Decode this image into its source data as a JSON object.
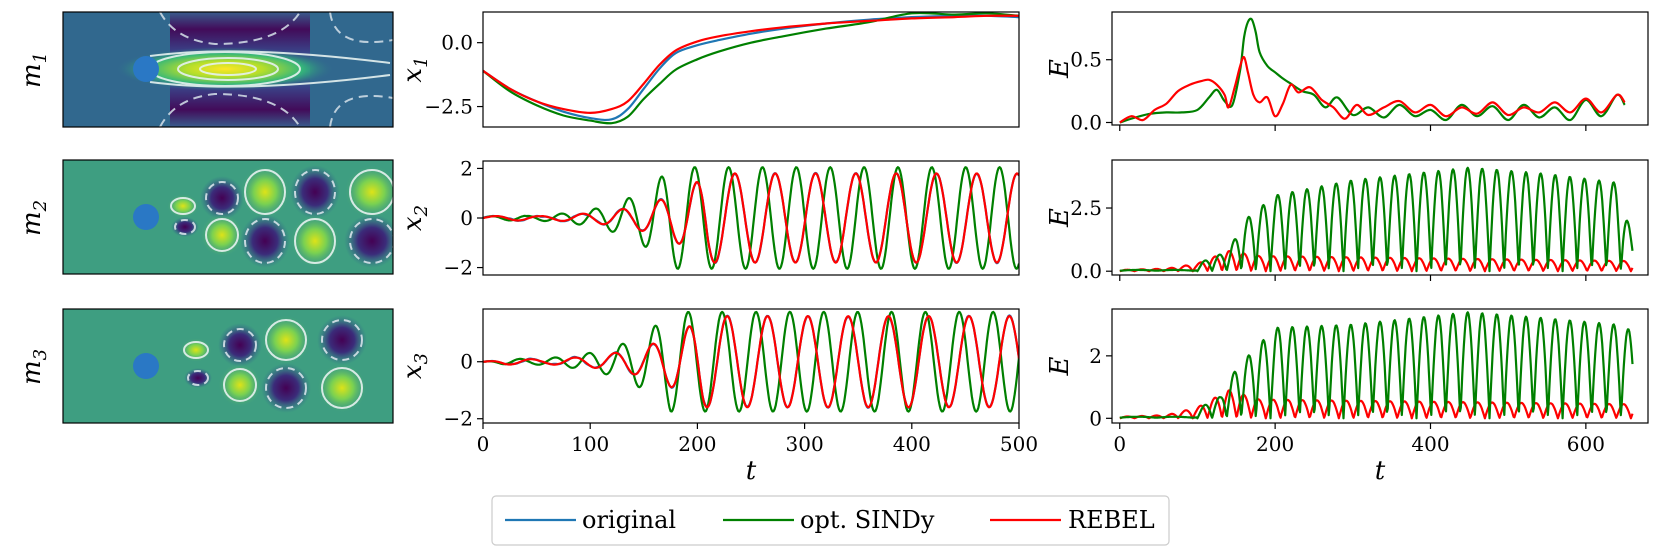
{
  "chart_data": [
    {
      "type": "heatmap",
      "panel": "m1",
      "ylabel": "m",
      "ylabel_sub": "1",
      "colormap": "viridis",
      "cylinder_color": "#2a78c5",
      "contours": "white solid/dashed"
    },
    {
      "type": "heatmap",
      "panel": "m2",
      "ylabel": "m",
      "ylabel_sub": "2",
      "colormap": "viridis",
      "cylinder_color": "#2a78c5",
      "contours": "white solid/dashed"
    },
    {
      "type": "heatmap",
      "panel": "m3",
      "ylabel": "m",
      "ylabel_sub": "3",
      "colormap": "viridis",
      "cylinder_color": "#2a78c5",
      "contours": "white solid/dashed"
    },
    {
      "type": "line",
      "panel": "x1",
      "ylabel": "x",
      "ylabel_sub": "1",
      "xlim": [
        0,
        500
      ],
      "ylim": [
        -3.3,
        1.2
      ],
      "yticks": [
        "0.0",
        "−2.5"
      ],
      "ytick_values": [
        0,
        -2.5
      ],
      "series": [
        {
          "name": "original",
          "color": "#1f77b4",
          "x": [
            0,
            25,
            50,
            75,
            100,
            120,
            135,
            150,
            165,
            180,
            200,
            220,
            250,
            280,
            320,
            360,
            400,
            440,
            470,
            500
          ],
          "y": [
            -1.1,
            -1.8,
            -2.3,
            -2.7,
            -2.95,
            -3.0,
            -2.6,
            -1.8,
            -1.0,
            -0.4,
            -0.1,
            0.1,
            0.35,
            0.55,
            0.75,
            0.9,
            1.0,
            1.05,
            1.05,
            1.0
          ]
        },
        {
          "name": "opt. SINDy",
          "color": "#008000",
          "x": [
            0,
            25,
            50,
            75,
            100,
            120,
            135,
            150,
            165,
            180,
            200,
            220,
            250,
            280,
            320,
            360,
            400,
            440,
            470,
            500
          ],
          "y": [
            -1.1,
            -1.9,
            -2.45,
            -2.85,
            -3.05,
            -3.15,
            -2.9,
            -2.2,
            -1.6,
            -1.05,
            -0.65,
            -0.35,
            0.0,
            0.25,
            0.55,
            0.8,
            1.15,
            1.1,
            1.15,
            1.05
          ]
        },
        {
          "name": "REBEL",
          "color": "#ff0000",
          "x": [
            0,
            25,
            50,
            75,
            100,
            120,
            135,
            150,
            165,
            180,
            200,
            220,
            250,
            280,
            320,
            360,
            400,
            440,
            470,
            500
          ],
          "y": [
            -1.1,
            -1.8,
            -2.3,
            -2.6,
            -2.75,
            -2.6,
            -2.3,
            -1.6,
            -0.85,
            -0.3,
            0.05,
            0.25,
            0.45,
            0.6,
            0.75,
            0.85,
            0.95,
            1.0,
            1.05,
            1.05
          ]
        }
      ]
    },
    {
      "type": "line",
      "panel": "x2",
      "ylabel": "x",
      "ylabel_sub": "2",
      "xlim": [
        0,
        500
      ],
      "ylim": [
        -2.3,
        2.3
      ],
      "yticks": [
        "2",
        "0",
        "−2"
      ],
      "ytick_values": [
        2,
        0,
        -2
      ],
      "oscillation": {
        "original": {
          "t0": 55,
          "tsat": 210,
          "period": 37.6,
          "amp": 1.8,
          "omega_ramp": 0.84,
          "jitter": [
            0.02,
            0.008
          ]
        },
        "opt. SINDy": {
          "t0": 40,
          "tsat": 175,
          "period": 31.6,
          "amp": 2.05,
          "omega_ramp": 0.95,
          "jitter": [
            0.0,
            0.0
          ]
        },
        "REBEL": {
          "t0": 55,
          "tsat": 210,
          "period": 37.6,
          "amp": 1.8,
          "omega_ramp": 0.84,
          "jitter": [
            0.0,
            0.0
          ]
        }
      }
    },
    {
      "type": "line",
      "panel": "x3",
      "ylabel": "x",
      "ylabel_sub": "3",
      "xlim": [
        0,
        500
      ],
      "ylim": [
        -2.15,
        1.85
      ],
      "yticks": [
        "0",
        "−2"
      ],
      "ytick_values": [
        0,
        -2
      ],
      "xticks": [
        "0",
        "100",
        "200",
        "300",
        "400",
        "500"
      ],
      "xtick_values": [
        0,
        100,
        200,
        300,
        400,
        500
      ],
      "xlabel": "t",
      "oscillation": {
        "original": {
          "t0": 55,
          "tsat": 205,
          "period": 37.6,
          "amp": 1.6,
          "omega_ramp": 0.84,
          "phase": 1.2,
          "jitter": [
            0.02,
            0.008
          ]
        },
        "opt. SINDy": {
          "t0": 40,
          "tsat": 175,
          "period": 31.6,
          "amp": 1.75,
          "omega_ramp": 0.95,
          "phase": 1.2,
          "jitter": [
            0.0,
            0.0
          ]
        },
        "REBEL": {
          "t0": 55,
          "tsat": 205,
          "period": 37.6,
          "amp": 1.6,
          "omega_ramp": 0.84,
          "phase": 1.2,
          "jitter": [
            0.0,
            0.0
          ]
        }
      }
    },
    {
      "type": "line",
      "panel": "E1",
      "ylabel": "E",
      "xlim": [
        -10,
        680
      ],
      "ylim": [
        -0.02,
        0.88
      ],
      "yticks": [
        "0.5",
        "0.0"
      ],
      "ytick_values": [
        0.5,
        0.0
      ],
      "series": [
        {
          "name": "opt. SINDy",
          "color": "#008000",
          "x": [
            0,
            20,
            40,
            60,
            80,
            100,
            115,
            125,
            135,
            145,
            155,
            160,
            165,
            170,
            175,
            180,
            190,
            200,
            210,
            220,
            235,
            250,
            265,
            280,
            300,
            320,
            340,
            360,
            380,
            400,
            420,
            440,
            460,
            480,
            500,
            520,
            540,
            560,
            580,
            600,
            620,
            640,
            650
          ],
          "y": [
            0.0,
            0.04,
            0.07,
            0.08,
            0.08,
            0.1,
            0.2,
            0.26,
            0.17,
            0.14,
            0.42,
            0.68,
            0.8,
            0.82,
            0.72,
            0.56,
            0.45,
            0.4,
            0.35,
            0.31,
            0.25,
            0.22,
            0.12,
            0.2,
            0.06,
            0.12,
            0.04,
            0.14,
            0.05,
            0.1,
            0.02,
            0.14,
            0.05,
            0.13,
            0.02,
            0.14,
            0.04,
            0.12,
            0.02,
            0.18,
            0.05,
            0.22,
            0.14
          ]
        },
        {
          "name": "REBEL",
          "color": "#ff0000",
          "x": [
            0,
            15,
            30,
            45,
            60,
            75,
            90,
            105,
            115,
            125,
            135,
            140,
            148,
            155,
            160,
            165,
            172,
            180,
            190,
            200,
            210,
            220,
            230,
            245,
            260,
            275,
            290,
            305,
            320,
            340,
            360,
            380,
            400,
            420,
            440,
            460,
            480,
            500,
            520,
            540,
            560,
            580,
            600,
            620,
            640,
            650
          ],
          "y": [
            0.0,
            0.05,
            0.02,
            0.1,
            0.15,
            0.25,
            0.3,
            0.33,
            0.34,
            0.3,
            0.22,
            0.12,
            0.28,
            0.45,
            0.52,
            0.4,
            0.22,
            0.16,
            0.2,
            0.05,
            0.15,
            0.3,
            0.24,
            0.28,
            0.18,
            0.12,
            0.03,
            0.14,
            0.06,
            0.12,
            0.17,
            0.08,
            0.14,
            0.05,
            0.12,
            0.07,
            0.16,
            0.06,
            0.12,
            0.08,
            0.16,
            0.08,
            0.19,
            0.08,
            0.22,
            0.16
          ]
        }
      ]
    },
    {
      "type": "line",
      "panel": "E2",
      "ylabel": "E",
      "xlim": [
        -10,
        680
      ],
      "ylim": [
        -0.15,
        4.4
      ],
      "yticks": [
        "2.5",
        "0.0"
      ],
      "ytick_values": [
        2.5,
        0.0
      ],
      "energy": {
        "sindy": {
          "period": 18.8,
          "start": 100,
          "env": [
            [
              100,
              0.3
            ],
            [
              140,
              0.8
            ],
            [
              160,
              2.0
            ],
            [
              200,
              3.0
            ],
            [
              300,
              3.6
            ],
            [
              450,
              4.1
            ],
            [
              550,
              3.85
            ],
            [
              640,
              3.5
            ],
            [
              660,
              1.3
            ]
          ]
        },
        "rebel": {
          "period": 18.8,
          "start": 0,
          "env": [
            [
              0,
              0.05
            ],
            [
              60,
              0.1
            ],
            [
              100,
              0.3
            ],
            [
              140,
              0.8
            ],
            [
              180,
              0.6
            ],
            [
              660,
              0.4
            ]
          ]
        }
      }
    },
    {
      "type": "line",
      "panel": "E3",
      "ylabel": "E",
      "xlim": [
        -10,
        680
      ],
      "ylim": [
        -0.15,
        3.5
      ],
      "yticks": [
        "2",
        "0"
      ],
      "ytick_values": [
        2,
        0
      ],
      "xticks": [
        "0",
        "200",
        "400",
        "600"
      ],
      "xtick_values": [
        0,
        200,
        400,
        600
      ],
      "xlabel": "t",
      "energy": {
        "sindy": {
          "period": 18.8,
          "start": 100,
          "env": [
            [
              100,
              0.3
            ],
            [
              130,
              0.7
            ],
            [
              150,
              1.6
            ],
            [
              200,
              2.9
            ],
            [
              300,
              3.0
            ],
            [
              450,
              3.4
            ],
            [
              550,
              3.2
            ],
            [
              640,
              3.0
            ],
            [
              660,
              2.8
            ]
          ]
        },
        "rebel": {
          "period": 18.8,
          "start": 0,
          "env": [
            [
              0,
              0.05
            ],
            [
              60,
              0.1
            ],
            [
              100,
              0.35
            ],
            [
              140,
              0.9
            ],
            [
              180,
              0.6
            ],
            [
              660,
              0.45
            ]
          ]
        }
      }
    }
  ],
  "legend": [
    {
      "label": "original",
      "color": "#1f77b4"
    },
    {
      "label": "opt. SINDy",
      "color": "#008000"
    },
    {
      "label": "REBEL",
      "color": "#ff0000"
    }
  ]
}
